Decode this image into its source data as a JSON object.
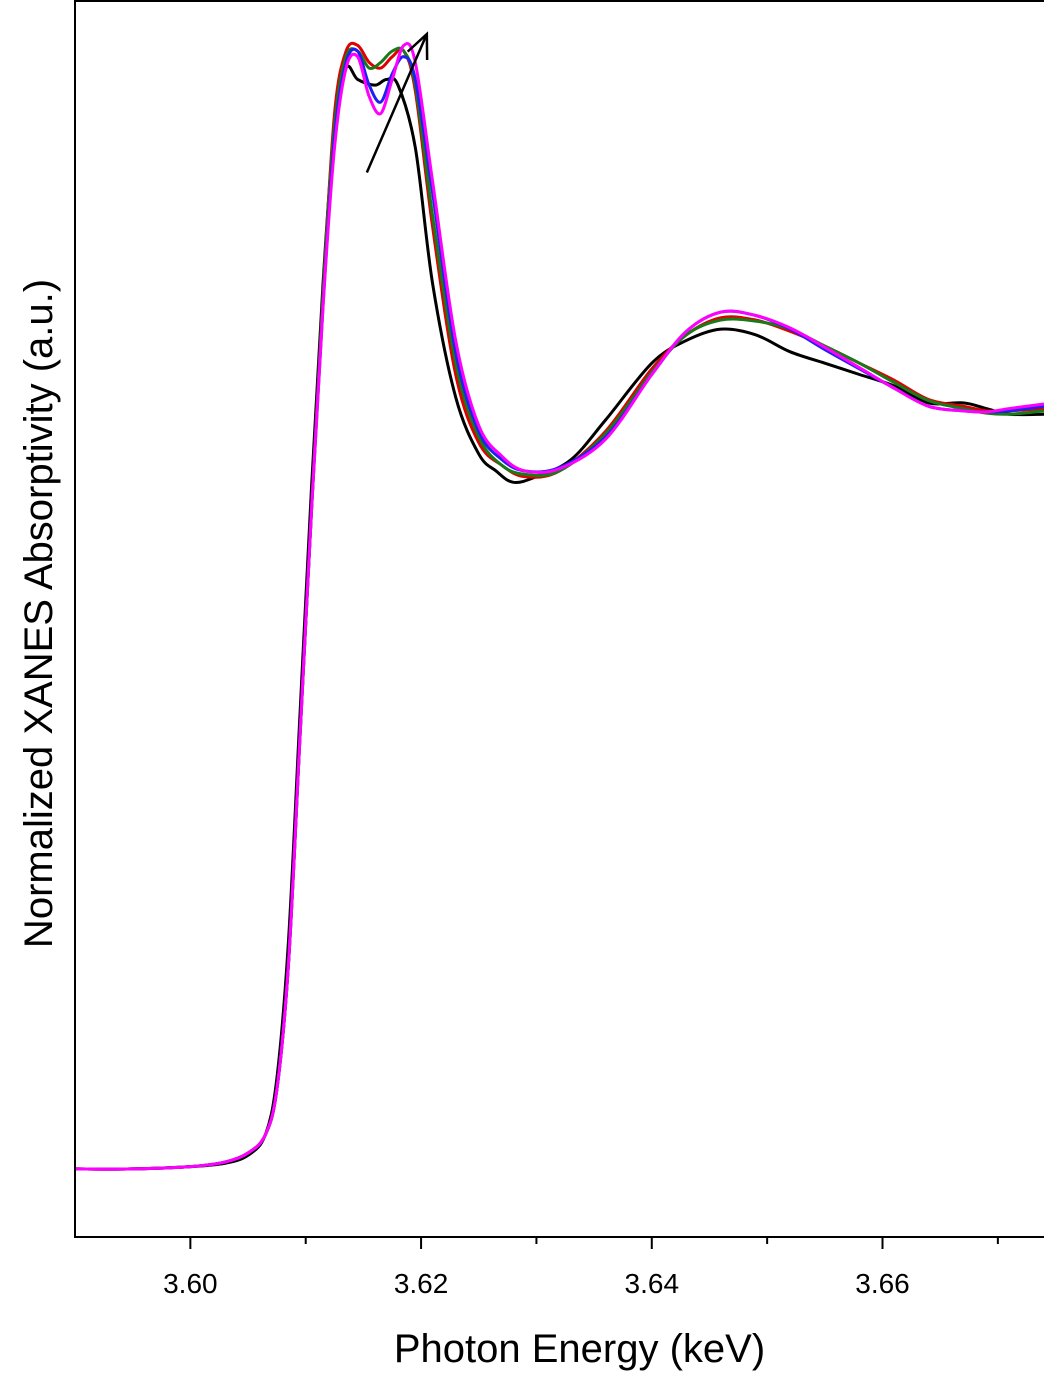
{
  "chart_data": {
    "type": "line",
    "title": "",
    "xlabel": "Photon Energy (keV)",
    "ylabel": "Normalized XANES Absorptivity (a.u.)",
    "xlim": [
      3.59,
      3.674
    ],
    "ylim": [
      -0.06,
      1.03
    ],
    "x_ticks": [
      3.6,
      3.62,
      3.64,
      3.66
    ],
    "x_tick_labels": [
      "3.60",
      "3.62",
      "3.64",
      "3.66"
    ],
    "x_minor_ticks": [
      3.61,
      3.63,
      3.65,
      3.67
    ],
    "y_ticks_shown": false,
    "grid": false,
    "legend": "none",
    "colors": {
      "black": "#000000",
      "red": "#e00000",
      "green": "#1a7a1a",
      "blue": "#2020f0",
      "magenta": "#ff00ff"
    },
    "annotation": {
      "type": "arrow",
      "from": [
        3.6153,
        0.878
      ],
      "to": [
        3.6205,
        1.0
      ]
    },
    "series": [
      {
        "color": "#000000",
        "x": [
          3.59,
          3.595,
          3.6,
          3.603,
          3.605,
          3.6065,
          3.6075,
          3.6085,
          3.6095,
          3.6105,
          3.6115,
          3.6125,
          3.6135,
          3.6145,
          3.616,
          3.617,
          3.618,
          3.6195,
          3.621,
          3.623,
          3.625,
          3.6265,
          3.628,
          3.63,
          3.633,
          3.636,
          3.64,
          3.643,
          3.646,
          3.649,
          3.652,
          3.655,
          3.658,
          3.661,
          3.664,
          3.667,
          3.669,
          3.671,
          3.674
        ],
        "y": [
          0.0,
          0.0,
          0.002,
          0.005,
          0.012,
          0.03,
          0.08,
          0.2,
          0.4,
          0.6,
          0.78,
          0.92,
          0.97,
          0.96,
          0.955,
          0.96,
          0.955,
          0.9,
          0.78,
          0.68,
          0.63,
          0.615,
          0.605,
          0.61,
          0.625,
          0.66,
          0.71,
          0.73,
          0.74,
          0.735,
          0.72,
          0.71,
          0.7,
          0.69,
          0.675,
          0.675,
          0.67,
          0.665,
          0.665
        ]
      },
      {
        "color": "#e00000",
        "x": [
          3.59,
          3.595,
          3.6,
          3.603,
          3.605,
          3.6065,
          3.6075,
          3.6085,
          3.6095,
          3.6105,
          3.6115,
          3.6125,
          3.6135,
          3.6145,
          3.6155,
          3.6165,
          3.6175,
          3.6185,
          3.6195,
          3.621,
          3.623,
          3.625,
          3.627,
          3.629,
          3.632,
          3.636,
          3.64,
          3.643,
          3.646,
          3.649,
          3.652,
          3.655,
          3.658,
          3.661,
          3.664,
          3.667,
          3.669,
          3.671,
          3.674
        ],
        "y": [
          0.0,
          0.0,
          0.002,
          0.006,
          0.014,
          0.03,
          0.07,
          0.18,
          0.38,
          0.58,
          0.77,
          0.93,
          0.985,
          0.99,
          0.975,
          0.97,
          0.98,
          0.985,
          0.95,
          0.83,
          0.7,
          0.64,
          0.62,
          0.61,
          0.615,
          0.65,
          0.705,
          0.735,
          0.75,
          0.748,
          0.738,
          0.725,
          0.71,
          0.695,
          0.678,
          0.672,
          0.668,
          0.668,
          0.67
        ]
      },
      {
        "color": "#1a7a1a",
        "x": [
          3.59,
          3.595,
          3.6,
          3.603,
          3.605,
          3.6065,
          3.6075,
          3.6085,
          3.6095,
          3.6105,
          3.6115,
          3.6125,
          3.6135,
          3.6145,
          3.6155,
          3.6165,
          3.6175,
          3.6185,
          3.6195,
          3.621,
          3.623,
          3.625,
          3.627,
          3.629,
          3.632,
          3.636,
          3.64,
          3.643,
          3.646,
          3.649,
          3.652,
          3.655,
          3.658,
          3.661,
          3.664,
          3.667,
          3.669,
          3.671,
          3.674
        ],
        "y": [
          0.0,
          0.0,
          0.002,
          0.006,
          0.014,
          0.03,
          0.07,
          0.18,
          0.38,
          0.58,
          0.77,
          0.92,
          0.98,
          0.985,
          0.97,
          0.975,
          0.985,
          0.985,
          0.955,
          0.84,
          0.71,
          0.645,
          0.62,
          0.612,
          0.615,
          0.648,
          0.702,
          0.735,
          0.748,
          0.747,
          0.74,
          0.725,
          0.71,
          0.693,
          0.677,
          0.67,
          0.666,
          0.665,
          0.668
        ]
      },
      {
        "color": "#2020f0",
        "x": [
          3.59,
          3.595,
          3.6,
          3.603,
          3.605,
          3.6065,
          3.6075,
          3.6085,
          3.6095,
          3.6105,
          3.6115,
          3.6125,
          3.6135,
          3.6145,
          3.6155,
          3.6165,
          3.6175,
          3.6185,
          3.6195,
          3.621,
          3.623,
          3.625,
          3.627,
          3.629,
          3.632,
          3.636,
          3.64,
          3.643,
          3.646,
          3.649,
          3.652,
          3.655,
          3.658,
          3.661,
          3.664,
          3.667,
          3.669,
          3.671,
          3.674
        ],
        "y": [
          0.0,
          0.0,
          0.002,
          0.006,
          0.014,
          0.03,
          0.07,
          0.18,
          0.38,
          0.58,
          0.76,
          0.91,
          0.975,
          0.985,
          0.955,
          0.94,
          0.965,
          0.98,
          0.96,
          0.86,
          0.72,
          0.65,
          0.625,
          0.615,
          0.618,
          0.645,
          0.7,
          0.738,
          0.755,
          0.752,
          0.74,
          0.722,
          0.705,
          0.688,
          0.672,
          0.668,
          0.667,
          0.668,
          0.672
        ]
      },
      {
        "color": "#ff00ff",
        "x": [
          3.59,
          3.595,
          3.6,
          3.603,
          3.605,
          3.6065,
          3.6075,
          3.6085,
          3.6095,
          3.6105,
          3.6115,
          3.6125,
          3.6135,
          3.6145,
          3.6155,
          3.6165,
          3.6175,
          3.6185,
          3.6195,
          3.621,
          3.623,
          3.625,
          3.627,
          3.629,
          3.632,
          3.636,
          3.64,
          3.643,
          3.646,
          3.649,
          3.652,
          3.655,
          3.658,
          3.661,
          3.664,
          3.667,
          3.669,
          3.671,
          3.674
        ],
        "y": [
          0.0,
          0.0,
          0.002,
          0.006,
          0.014,
          0.03,
          0.07,
          0.18,
          0.38,
          0.58,
          0.76,
          0.9,
          0.97,
          0.98,
          0.945,
          0.93,
          0.96,
          0.99,
          0.975,
          0.87,
          0.73,
          0.655,
          0.628,
          0.615,
          0.617,
          0.643,
          0.7,
          0.738,
          0.755,
          0.752,
          0.741,
          0.724,
          0.706,
          0.688,
          0.672,
          0.668,
          0.667,
          0.67,
          0.674
        ]
      }
    ]
  }
}
